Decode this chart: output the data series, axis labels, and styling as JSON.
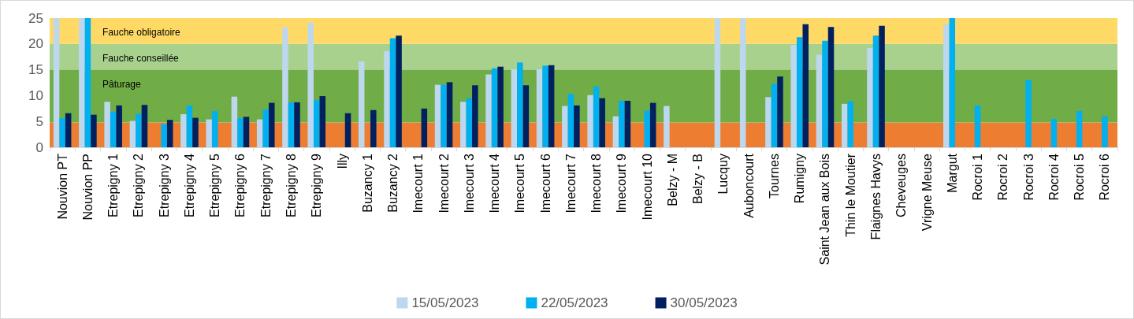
{
  "chart_data": {
    "type": "bar",
    "categories": [
      "Nouvion PT",
      "Nouvion PP",
      "Etrepigny 1",
      "Etrepigny 2",
      "Etrepigny 3",
      "Etrepigny 4",
      "Etrepigny 5",
      "Etrepigny 6",
      "Etrepigny 7",
      "Etrepigny 8",
      "Etrepigny 9",
      "Illy",
      "Buzancy 1",
      "Buzancy 2",
      "Imecourt 1",
      "Imecourt 2",
      "Imecourt 3",
      "Imecourt 4",
      "Imecourt 5",
      "Imecourt 6",
      "Imecourt 7",
      "Imecourt 8",
      "Imecourt 9",
      "Imecourt 10",
      "Belzy - M",
      "Belzy - B",
      "Lucquy",
      "Auboncourt",
      "Tournes",
      "Rumigny",
      "Saint Jean aux Bois",
      "Thin le Moutier",
      "Flaignes Havys",
      "Cheveuges",
      "Vrigne Meuse",
      "Margut",
      "Rocroi 1",
      "Rocroi 2",
      "Rocroi 3",
      "Rocroi 4",
      "Rocroi 5",
      "Rocroi 6"
    ],
    "series": [
      {
        "name": "15/05/2023",
        "color": "#bdd7ee",
        "values": [
          25,
          25,
          8.8,
          5.1,
          null,
          6.4,
          5.4,
          9.8,
          5.4,
          23.2,
          24.1,
          null,
          16.6,
          18.6,
          null,
          12.1,
          8.8,
          14.1,
          15.1,
          15.1,
          8.0,
          10.1,
          6.0,
          null,
          8.0,
          null,
          25,
          25,
          9.7,
          19.8,
          17.9,
          8.4,
          19.2,
          null,
          null,
          23.8,
          null,
          null,
          null,
          null,
          null,
          null
        ]
      },
      {
        "name": "22/05/2023",
        "color": "#00b0f0",
        "values": [
          5.6,
          25,
          6.9,
          6.5,
          4.5,
          8.1,
          7.0,
          5.6,
          7.3,
          8.7,
          9.1,
          null,
          null,
          21.1,
          null,
          12.1,
          9.5,
          15.3,
          16.4,
          15.8,
          10.3,
          11.8,
          9.0,
          7.1,
          null,
          null,
          null,
          null,
          12.3,
          21.3,
          20.6,
          8.9,
          21.6,
          null,
          null,
          25,
          8.1,
          null,
          13.0,
          5.5,
          7.0,
          6.0
        ]
      },
      {
        "name": "30/05/2023",
        "color": "#002060",
        "values": [
          6.6,
          6.3,
          8.1,
          8.2,
          5.3,
          5.7,
          null,
          5.9,
          8.6,
          8.7,
          9.9,
          6.6,
          7.2,
          21.6,
          7.5,
          12.6,
          12.0,
          15.6,
          12.0,
          15.9,
          8.1,
          9.5,
          9.0,
          8.6,
          null,
          null,
          null,
          null,
          13.7,
          23.8,
          23.3,
          null,
          23.5,
          null,
          null,
          null,
          null,
          null,
          null,
          null,
          null,
          null
        ]
      }
    ],
    "ylim": [
      0,
      25
    ],
    "yticks": [
      0,
      5,
      10,
      15,
      20,
      25
    ],
    "grid": "y",
    "legend": "bottom",
    "bands": [
      {
        "axis": "y",
        "from": 0,
        "to": 4.8,
        "color": "#ed7d31"
      },
      {
        "axis": "y",
        "from": 4.8,
        "to": 15,
        "label": "Pâturage",
        "color": "#70ad47"
      },
      {
        "axis": "y",
        "from": 15,
        "to": 20,
        "label": "Fauche conseillée",
        "color": "#a9d18e"
      },
      {
        "axis": "y",
        "from": 20,
        "to": 25,
        "label": "Fauche obligatoire",
        "color": "#ffd966"
      }
    ]
  }
}
